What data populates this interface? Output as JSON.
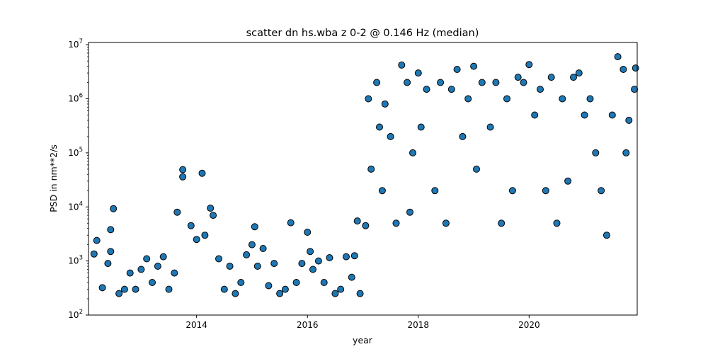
{
  "chart_data": {
    "type": "scatter",
    "title": "scatter dn hs.wba z 0-2 @ 0.146 Hz (median)",
    "xlabel": "year",
    "ylabel": "PSD in nm**2/s",
    "xlim": [
      2012.05,
      2021.95
    ],
    "ylim": [
      100,
      11000000
    ],
    "yscale": "log",
    "grid": false,
    "legend": "none",
    "marker_color": "#1f77b4",
    "marker_edge": "#000000",
    "x_ticks": [
      2014,
      2016,
      2018,
      2020
    ],
    "x_tick_labels": [
      "2014",
      "2016",
      "2018",
      "2020"
    ],
    "y_ticks": [
      100,
      1000,
      10000,
      100000,
      1000000,
      10000000
    ],
    "y_tick_labels": [
      {
        "base": "10",
        "exp": "2"
      },
      {
        "base": "10",
        "exp": "3"
      },
      {
        "base": "10",
        "exp": "4"
      },
      {
        "base": "10",
        "exp": "5"
      },
      {
        "base": "10",
        "exp": "6"
      },
      {
        "base": "10",
        "exp": "7"
      }
    ],
    "points": [
      [
        2012.15,
        1350
      ],
      [
        2012.2,
        2400
      ],
      [
        2012.3,
        320
      ],
      [
        2012.4,
        900
      ],
      [
        2012.45,
        3800
      ],
      [
        2012.45,
        1500
      ],
      [
        2012.5,
        9300
      ],
      [
        2012.6,
        250
      ],
      [
        2012.7,
        300
      ],
      [
        2012.8,
        600
      ],
      [
        2012.9,
        300
      ],
      [
        2013.0,
        700
      ],
      [
        2013.1,
        1100
      ],
      [
        2013.2,
        400
      ],
      [
        2013.3,
        800
      ],
      [
        2013.4,
        1200
      ],
      [
        2013.5,
        300
      ],
      [
        2013.6,
        600
      ],
      [
        2013.65,
        8000
      ],
      [
        2013.75,
        49000
      ],
      [
        2013.75,
        36000
      ],
      [
        2013.9,
        4500
      ],
      [
        2014.0,
        2500
      ],
      [
        2014.1,
        42000
      ],
      [
        2014.15,
        3000
      ],
      [
        2014.25,
        9500
      ],
      [
        2014.3,
        7000
      ],
      [
        2014.4,
        1100
      ],
      [
        2014.5,
        300
      ],
      [
        2014.6,
        800
      ],
      [
        2014.7,
        250
      ],
      [
        2014.8,
        400
      ],
      [
        2014.9,
        1300
      ],
      [
        2015.0,
        2000
      ],
      [
        2015.05,
        4300
      ],
      [
        2015.1,
        800
      ],
      [
        2015.2,
        1700
      ],
      [
        2015.3,
        350
      ],
      [
        2015.4,
        900
      ],
      [
        2015.5,
        250
      ],
      [
        2015.6,
        300
      ],
      [
        2015.7,
        5100
      ],
      [
        2015.8,
        400
      ],
      [
        2015.9,
        900
      ],
      [
        2016.0,
        3400
      ],
      [
        2016.05,
        1500
      ],
      [
        2016.1,
        700
      ],
      [
        2016.2,
        1000
      ],
      [
        2016.3,
        400
      ],
      [
        2016.4,
        1150
      ],
      [
        2016.5,
        250
      ],
      [
        2016.6,
        300
      ],
      [
        2016.7,
        1200
      ],
      [
        2016.8,
        500
      ],
      [
        2016.85,
        1250
      ],
      [
        2016.9,
        5500
      ],
      [
        2016.95,
        250
      ],
      [
        2017.05,
        4500
      ],
      [
        2017.1,
        1000000
      ],
      [
        2017.15,
        50000
      ],
      [
        2017.25,
        2000000
      ],
      [
        2017.3,
        300000
      ],
      [
        2017.35,
        20000
      ],
      [
        2017.4,
        800000
      ],
      [
        2017.5,
        200000
      ],
      [
        2017.6,
        5000
      ],
      [
        2017.7,
        4200000
      ],
      [
        2017.8,
        2000000
      ],
      [
        2017.85,
        8000
      ],
      [
        2017.9,
        100000
      ],
      [
        2018.0,
        3000000
      ],
      [
        2018.05,
        300000
      ],
      [
        2018.15,
        1500000
      ],
      [
        2018.3,
        20000
      ],
      [
        2018.4,
        2000000
      ],
      [
        2018.5,
        5000
      ],
      [
        2018.6,
        1500000
      ],
      [
        2018.7,
        3500000
      ],
      [
        2018.8,
        200000
      ],
      [
        2018.9,
        1000000
      ],
      [
        2019.0,
        4000000
      ],
      [
        2019.05,
        50000
      ],
      [
        2019.15,
        2000000
      ],
      [
        2019.3,
        300000
      ],
      [
        2019.4,
        2000000
      ],
      [
        2019.5,
        5000
      ],
      [
        2019.6,
        1000000
      ],
      [
        2019.7,
        20000
      ],
      [
        2019.8,
        2500000
      ],
      [
        2019.9,
        2000000
      ],
      [
        2020.0,
        4300000
      ],
      [
        2020.1,
        500000
      ],
      [
        2020.2,
        1500000
      ],
      [
        2020.3,
        20000
      ],
      [
        2020.4,
        2500000
      ],
      [
        2020.5,
        5000
      ],
      [
        2020.6,
        1000000
      ],
      [
        2020.7,
        30000
      ],
      [
        2020.8,
        2500000
      ],
      [
        2020.9,
        3000000
      ],
      [
        2021.0,
        500000
      ],
      [
        2021.1,
        1000000
      ],
      [
        2021.2,
        100000
      ],
      [
        2021.3,
        20000
      ],
      [
        2021.4,
        3000
      ],
      [
        2021.5,
        500000
      ],
      [
        2021.6,
        6000000
      ],
      [
        2021.7,
        3500000
      ],
      [
        2021.75,
        100000
      ],
      [
        2021.8,
        400000
      ],
      [
        2021.9,
        1500000
      ],
      [
        2021.92,
        3700000
      ]
    ]
  }
}
